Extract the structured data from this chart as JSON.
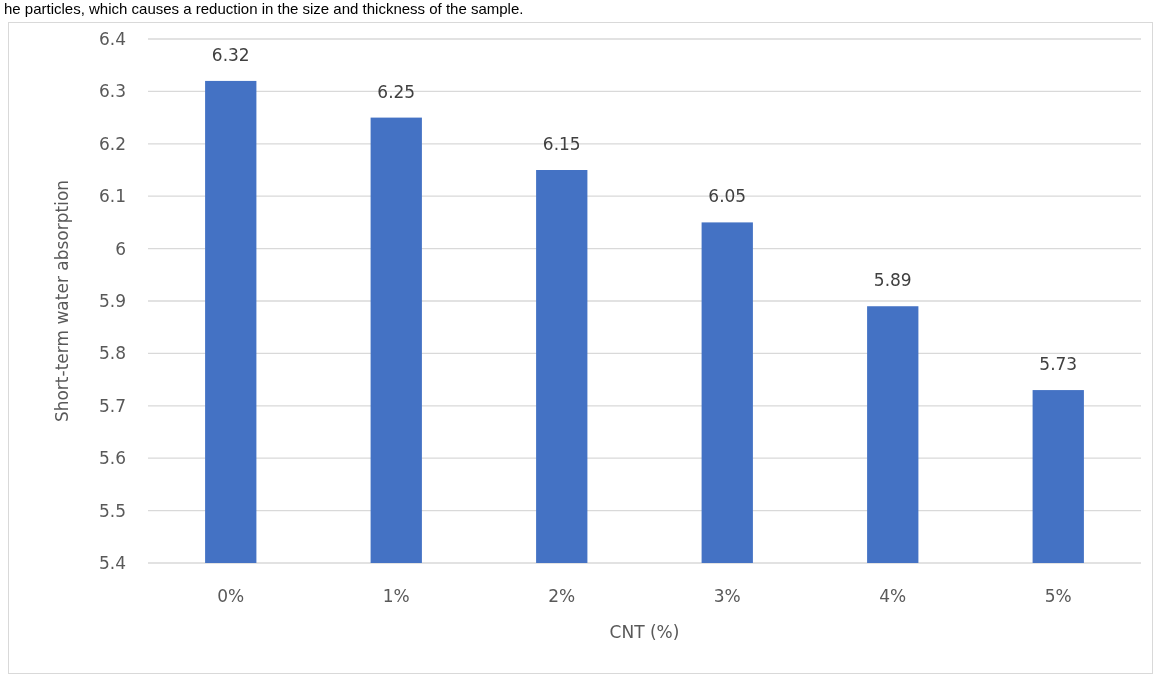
{
  "chart_data": {
    "type": "bar",
    "annotations": [
      "he particles, which causes a reduction in the size and thickness of the sample."
    ],
    "xlabel": "CNT (%)",
    "ylabel": "Short-term water absorption",
    "categories": [
      "0%",
      "1%",
      "2%",
      "3%",
      "4%",
      "5%"
    ],
    "values": [
      6.32,
      6.25,
      6.15,
      6.05,
      5.89,
      5.73
    ],
    "color": "#4472c4",
    "ylim": [
      5.4,
      6.4
    ],
    "yticks": [
      {
        "value": 5.4,
        "label": "5.4"
      },
      {
        "value": 5.5,
        "label": "5.5"
      },
      {
        "value": 5.6,
        "label": "5.6"
      },
      {
        "value": 5.7,
        "label": "5.7"
      },
      {
        "value": 5.8,
        "label": "5.8"
      },
      {
        "value": 5.9,
        "label": "5.9"
      },
      {
        "value": 6,
        "label": "6"
      },
      {
        "value": 6.1,
        "label": "6.1"
      },
      {
        "value": 6.2,
        "label": "6.2"
      },
      {
        "value": 6.3,
        "label": "6.3"
      },
      {
        "value": 6.4,
        "label": "6.4"
      }
    ],
    "grid": "y",
    "data_labels": true
  }
}
